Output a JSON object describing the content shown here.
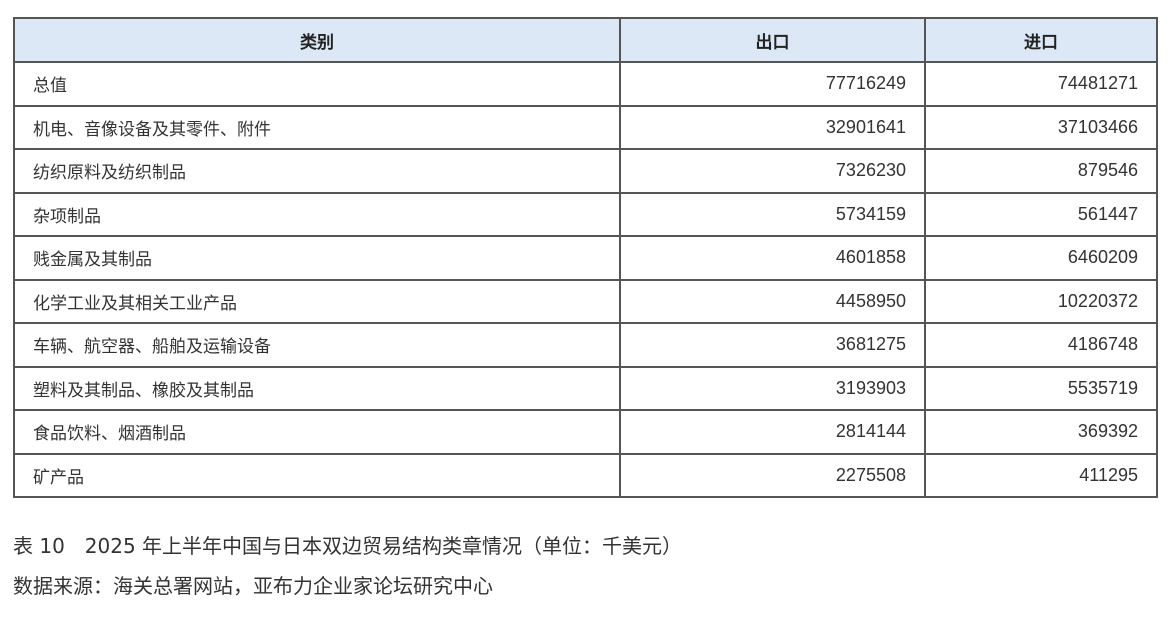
{
  "table": {
    "headers": [
      "类别",
      "出口",
      "进口"
    ],
    "rows": [
      {
        "category": "总值",
        "export": "77716249",
        "import": "74481271"
      },
      {
        "category": "机电、音像设备及其零件、附件",
        "export": "32901641",
        "import": "37103466"
      },
      {
        "category": "纺织原料及纺织制品",
        "export": "7326230",
        "import": "879546"
      },
      {
        "category": "杂项制品",
        "export": "5734159",
        "import": "561447"
      },
      {
        "category": "贱金属及其制品",
        "export": "4601858",
        "import": "6460209"
      },
      {
        "category": "化学工业及其相关工业产品",
        "export": "4458950",
        "import": "10220372"
      },
      {
        "category": "车辆、航空器、船舶及运输设备",
        "export": "3681275",
        "import": "4186748"
      },
      {
        "category": "塑料及其制品、橡胶及其制品",
        "export": "3193903",
        "import": "5535719"
      },
      {
        "category": "食品饮料、烟酒制品",
        "export": "2814144",
        "import": "369392"
      },
      {
        "category": "矿产品",
        "export": "2275508",
        "import": "411295"
      }
    ]
  },
  "caption": "表 10　2025 年上半年中国与日本双边贸易结构类章情况（单位：千美元）",
  "source": "数据来源：海关总署网站，亚布力企业家论坛研究中心",
  "colors": {
    "header_bg": "#dce8f5",
    "border": "#555555"
  }
}
